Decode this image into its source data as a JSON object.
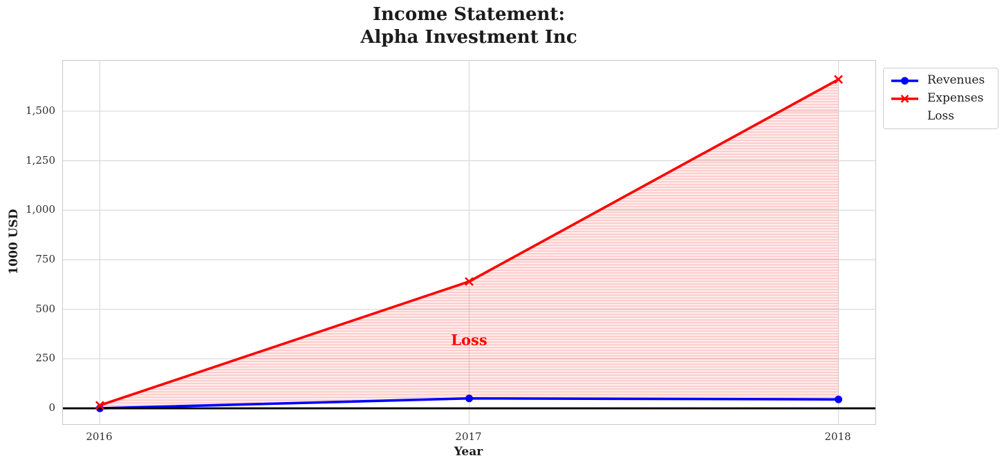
{
  "title": {
    "line1": "Income Statement:",
    "line2": "Alpha Investment Inc"
  },
  "chart_data": {
    "type": "line",
    "title": "Income Statement: Alpha Investment Inc",
    "xlabel": "Year",
    "ylabel": "1000 USD",
    "x": [
      2016,
      2017,
      2018
    ],
    "x_tick_labels": [
      "2016",
      "2017",
      "2018"
    ],
    "y_ticks": [
      0,
      250,
      500,
      750,
      1000,
      1250,
      1500
    ],
    "y_tick_labels": [
      "0",
      "250",
      "500",
      "750",
      "1,000",
      "1,250",
      "1,500"
    ],
    "xlim": [
      2015.9,
      2018.1
    ],
    "ylim": [
      -80,
      1754
    ],
    "grid": true,
    "series": [
      {
        "name": "Revenues",
        "color": "#0000ff",
        "marker": "circle",
        "values": [
          0,
          50,
          45
        ]
      },
      {
        "name": "Expenses",
        "color": "#ff0000",
        "marker": "x",
        "values": [
          15,
          640,
          1660
        ]
      }
    ],
    "fill": {
      "name": "Loss",
      "between": [
        "Revenues",
        "Expenses"
      ],
      "color": "#ff0000",
      "hatch": "-"
    },
    "baseline": {
      "y": 0,
      "color": "#000000"
    },
    "annotations": [
      {
        "text": "Loss",
        "x": 2017.0,
        "y": 345,
        "color": "#ff0000"
      }
    ],
    "legend": {
      "position": "outside-upper-right",
      "entries": [
        "Revenues",
        "Expenses",
        "Loss"
      ]
    }
  }
}
